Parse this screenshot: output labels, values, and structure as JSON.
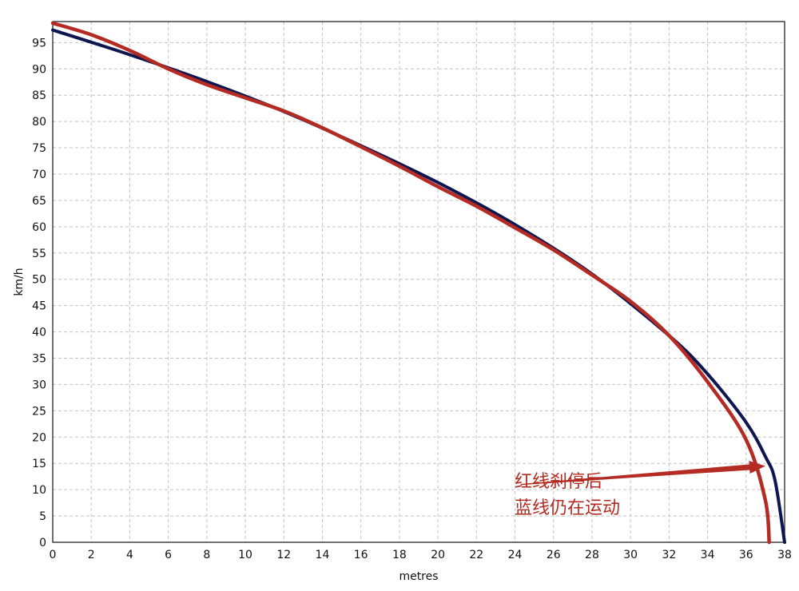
{
  "chart_data": {
    "type": "line",
    "title": "",
    "xlabel": "metres",
    "ylabel": "km/h",
    "xlim": [
      0,
      38
    ],
    "ylim": [
      0,
      99
    ],
    "x_ticks": [
      0,
      2,
      4,
      6,
      8,
      10,
      12,
      14,
      16,
      18,
      20,
      22,
      24,
      26,
      28,
      30,
      32,
      34,
      36,
      38
    ],
    "y_ticks": [
      0,
      5,
      10,
      15,
      20,
      25,
      30,
      35,
      40,
      45,
      50,
      55,
      60,
      65,
      70,
      75,
      80,
      85,
      90,
      95
    ],
    "grid": true,
    "legend": "none",
    "series": [
      {
        "color": "#0d1650",
        "x": [
          0,
          4,
          8,
          12,
          16,
          20,
          24,
          28,
          32,
          34,
          36,
          37,
          37.5,
          38
        ],
        "y": [
          97.4,
          92.7,
          87.6,
          81.9,
          75.4,
          68.4,
          60.4,
          51.0,
          39.3,
          32.0,
          22.8,
          16.3,
          11.8,
          0
        ]
      },
      {
        "color": "#b32b22",
        "x": [
          0,
          2,
          4,
          6,
          8,
          10,
          12,
          14,
          16,
          18,
          20,
          22,
          24,
          26,
          28,
          30,
          32,
          34,
          36,
          37,
          37.2
        ],
        "y": [
          98.7,
          96.5,
          93.5,
          90.0,
          87.0,
          84.5,
          82.0,
          78.8,
          75.2,
          71.5,
          67.6,
          63.9,
          59.8,
          55.6,
          50.8,
          45.8,
          39.3,
          30.5,
          19.5,
          8.0,
          0
        ]
      }
    ],
    "annotations": [
      {
        "lines": [
          "红线刹停后",
          "蓝线仍在运动"
        ],
        "color": "#b32b22",
        "arrow_from": [
          24.3,
          11
        ],
        "arrow_to": [
          37.0,
          14.5
        ]
      }
    ]
  }
}
